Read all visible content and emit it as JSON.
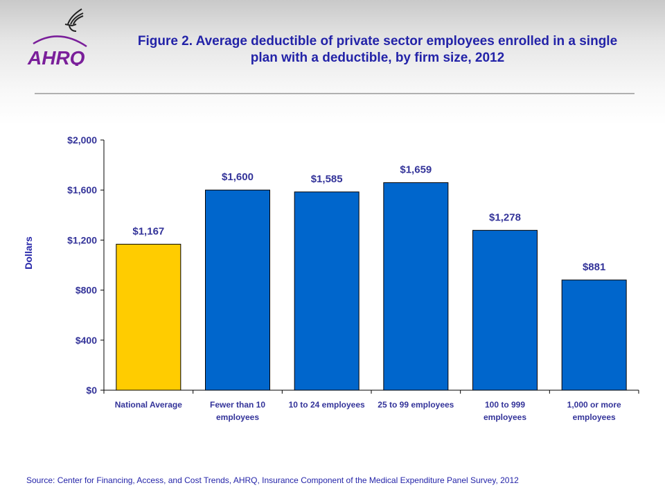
{
  "logo": {
    "text": "AHRQ",
    "icon": "hhs-eagle-icon"
  },
  "title": "Figure 2. Average deductible of private sector employees enrolled in a single plan with a deductible, by firm size, 2012",
  "source": "Source: Center for Financing, Access, and Cost Trends, AHRQ, Insurance Component of the Medical Expenditure Panel Survey, 2012",
  "chart_data": {
    "type": "bar",
    "title": "Figure 2. Average deductible of private sector employees enrolled in a single plan with a deductible, by firm size, 2012",
    "xlabel": "",
    "ylabel": "Dollars",
    "ylim": [
      0,
      2000
    ],
    "yticks": [
      0,
      400,
      800,
      1200,
      1600,
      2000
    ],
    "ytick_labels": [
      "$0",
      "$400",
      "$800",
      "$1,200",
      "$1,600",
      "$2,000"
    ],
    "categories": [
      [
        "National Average"
      ],
      [
        "Fewer than 10",
        "employees"
      ],
      [
        "10 to 24 employees"
      ],
      [
        "25 to 99 employees"
      ],
      [
        "100 to 999",
        "employees"
      ],
      [
        "1,000 or more",
        "employees"
      ]
    ],
    "values": [
      1167,
      1600,
      1585,
      1659,
      1278,
      881
    ],
    "data_labels": [
      "$1,167",
      "$1,600",
      "$1,585",
      "$1,659",
      "$1,278",
      "$881"
    ],
    "bar_colors": [
      "#ffcc00",
      "#0066cc",
      "#0066cc",
      "#0066cc",
      "#0066cc",
      "#0066cc"
    ],
    "text_color": "#333399",
    "grid": false,
    "legend": "none"
  }
}
